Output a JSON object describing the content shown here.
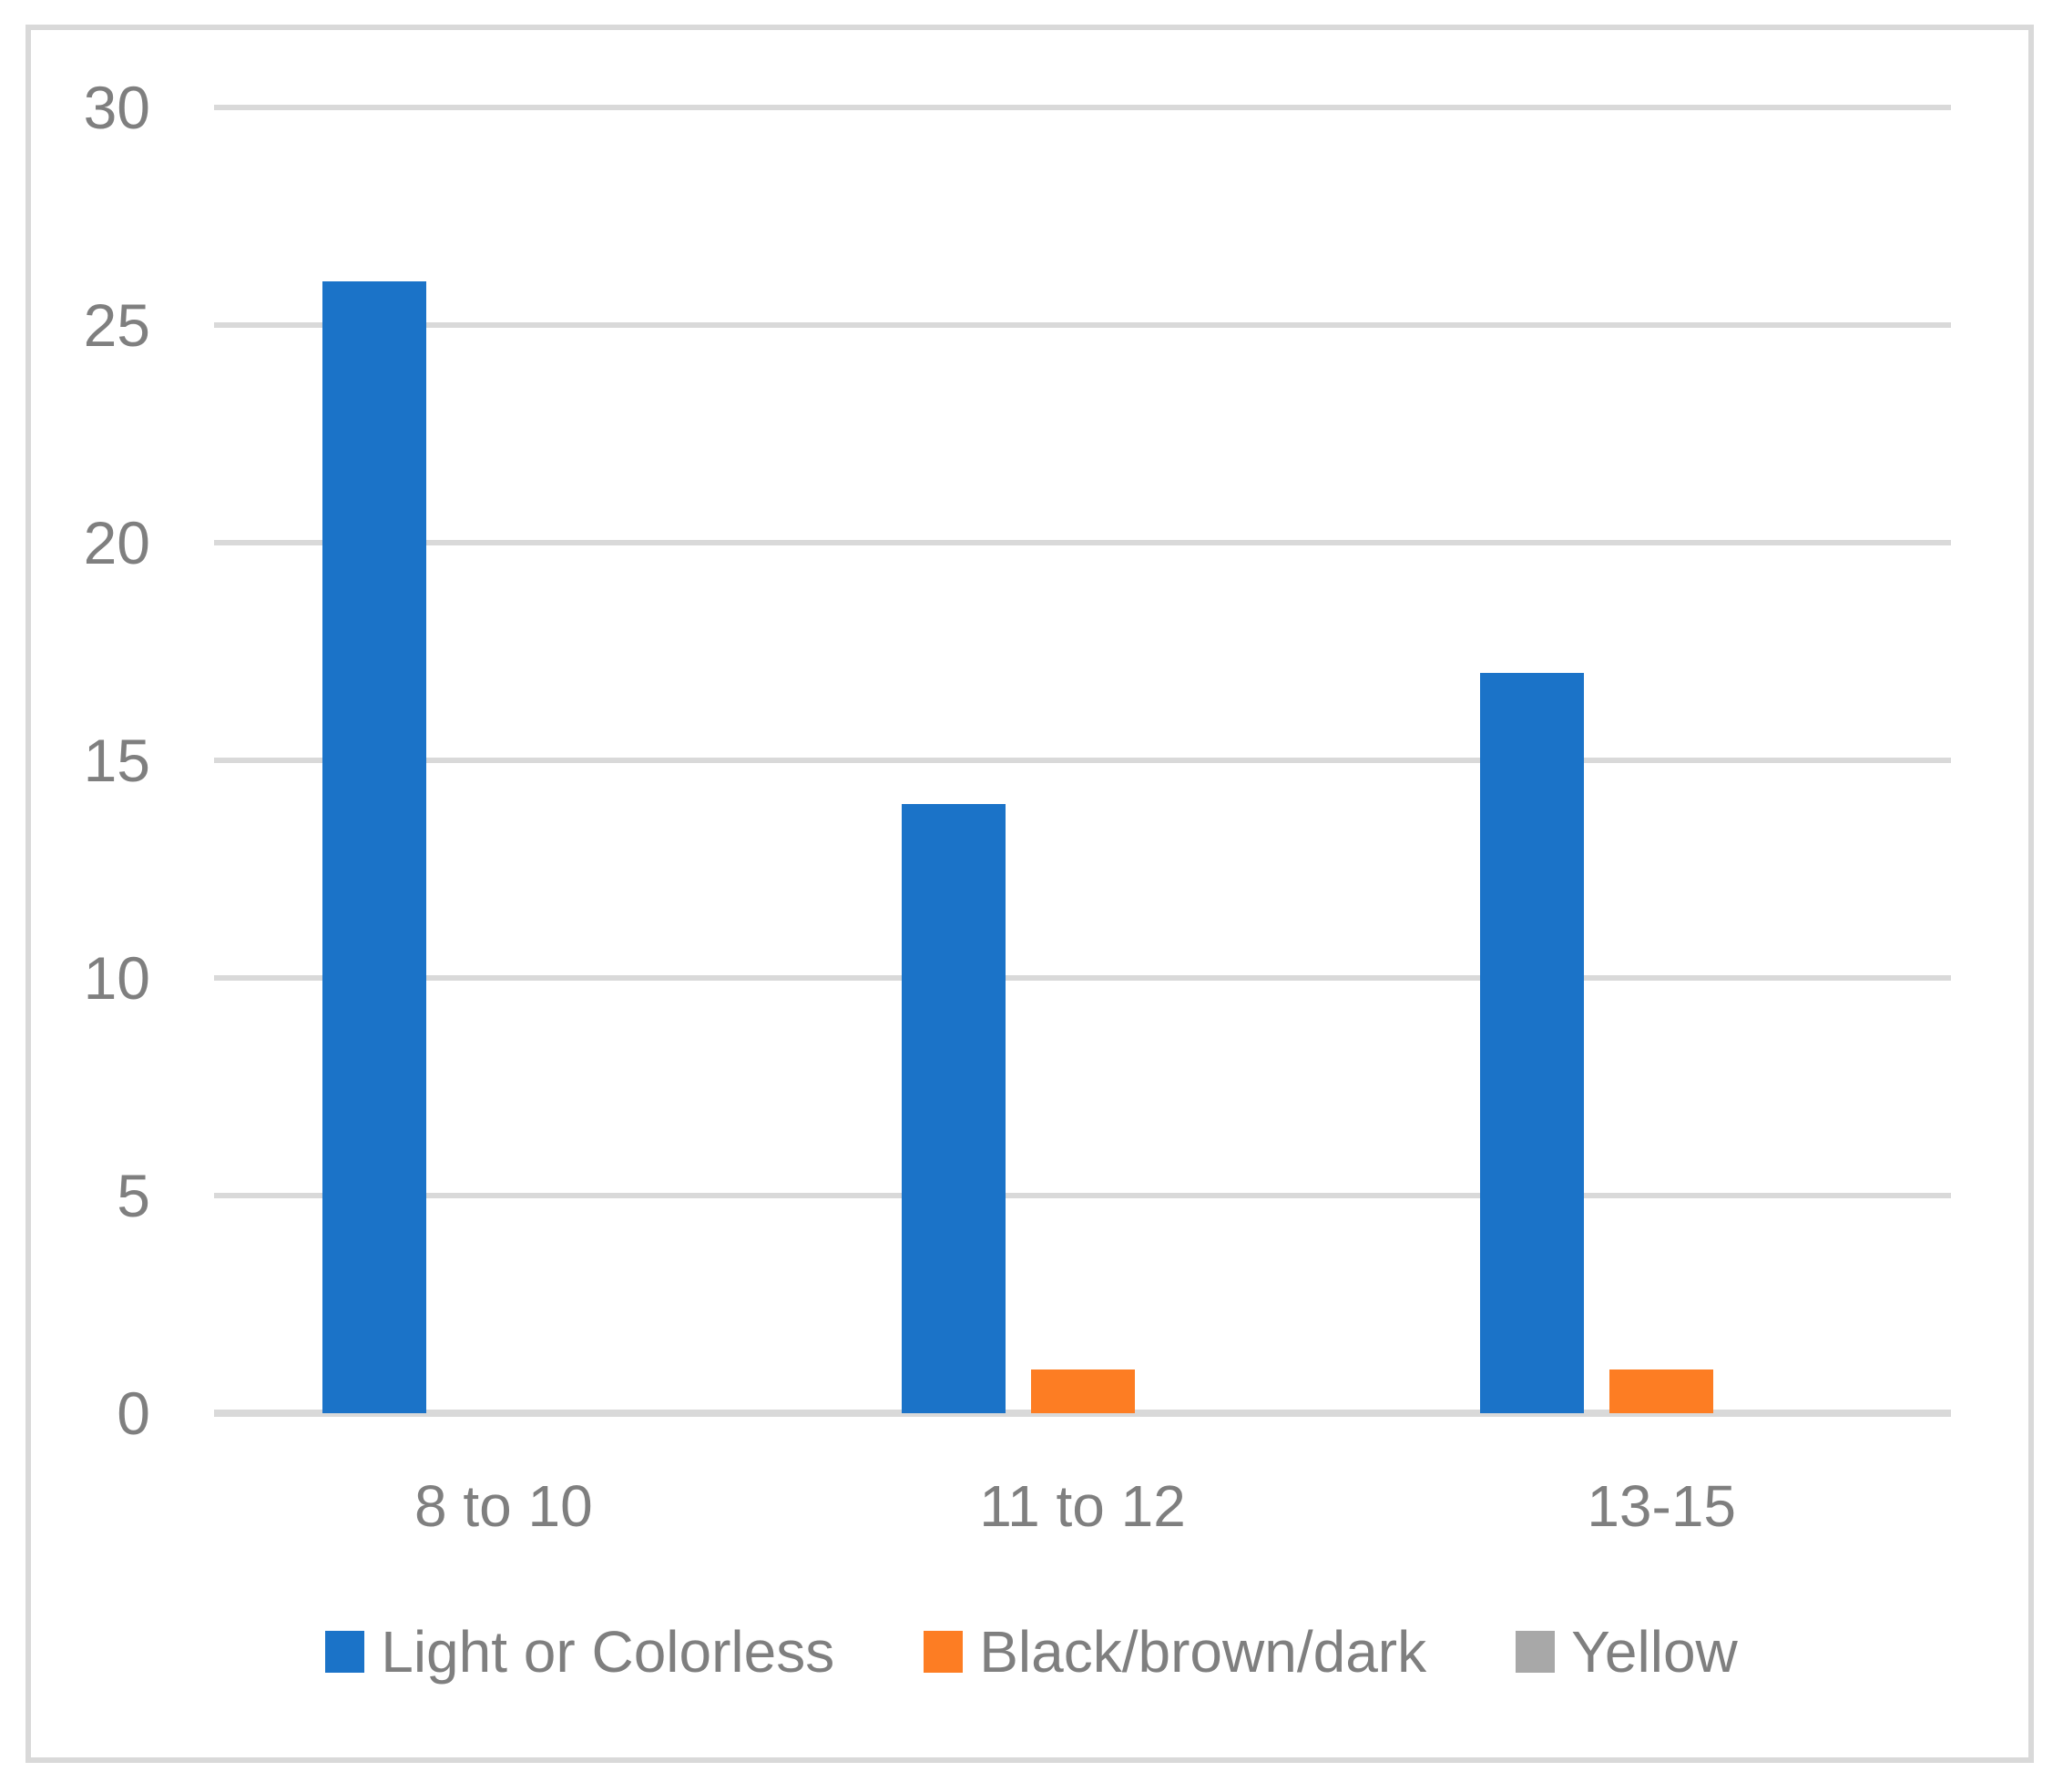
{
  "chart_data": {
    "type": "bar",
    "title": "",
    "xlabel": "",
    "ylabel": "",
    "categories": [
      "8 to 10",
      "11 to 12",
      "13-15"
    ],
    "series": [
      {
        "name": "Light or Colorless",
        "color": "#1b73c8",
        "values": [
          26,
          14,
          17
        ]
      },
      {
        "name": "Black/brown/dark",
        "color": "#fd7d23",
        "values": [
          0,
          1,
          1
        ]
      },
      {
        "name": "Yellow",
        "color": "#a8a8a8",
        "values": [
          0,
          0,
          0
        ]
      }
    ],
    "ylim": [
      0,
      30
    ],
    "yticks": [
      0,
      5,
      10,
      15,
      20,
      25,
      30
    ],
    "grid": true,
    "legend_position": "bottom"
  },
  "style_colors": {
    "gridline": "#d9d9d9",
    "axis_text": "#7f7f7f",
    "frame_border": "#d9d9d9"
  }
}
